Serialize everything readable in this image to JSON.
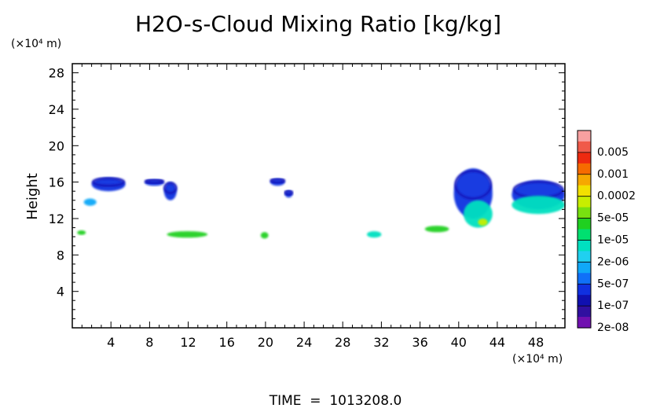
{
  "chart_data": {
    "type": "heatmap",
    "title": "H2O-s-Cloud Mixing Ratio [kg/kg]",
    "ylabel": "Height",
    "y_unit": "(×10⁴ m)",
    "x_unit": "(×10⁴ m)",
    "footer": "TIME  =  1013208.0",
    "xlim": [
      0,
      51
    ],
    "ylim": [
      0,
      29
    ],
    "x_ticks": [
      4,
      8,
      12,
      16,
      20,
      24,
      28,
      32,
      36,
      40,
      44,
      48
    ],
    "y_ticks": [
      4,
      8,
      12,
      16,
      20,
      24,
      28
    ],
    "colorbar": {
      "labels": [
        "0.005",
        "0.001",
        "0.0002",
        "5e-05",
        "1e-05",
        "2e-06",
        "5e-07",
        "1e-07",
        "2e-08"
      ],
      "colors_top_to_bottom": [
        "#f8a0a0",
        "#f05a4a",
        "#ee2a10",
        "#f66b00",
        "#f6a800",
        "#f2e000",
        "#c8ee00",
        "#78e010",
        "#20d020",
        "#00e070",
        "#00e0c0",
        "#20d0f0",
        "#10a8f8",
        "#1070f8",
        "#1030e0",
        "#1010b0",
        "#3010a0",
        "#7010b0"
      ]
    },
    "cloud_regions": [
      {
        "x0": 2.0,
        "x1": 5.5,
        "y0": 15.0,
        "y1": 16.5,
        "level": "5e-07"
      },
      {
        "x0": 1.2,
        "x1": 2.5,
        "y0": 13.4,
        "y1": 14.2,
        "level": "2e-06"
      },
      {
        "x0": 0.5,
        "x1": 1.4,
        "y0": 10.2,
        "y1": 10.7,
        "level": "5e-05"
      },
      {
        "x0": 7.5,
        "x1": 9.5,
        "y0": 15.6,
        "y1": 16.3,
        "level": "5e-07"
      },
      {
        "x0": 9.5,
        "x1": 10.8,
        "y0": 14.0,
        "y1": 16.0,
        "level": "5e-07"
      },
      {
        "x0": 9.8,
        "x1": 14.0,
        "y0": 9.9,
        "y1": 10.6,
        "level": "5e-05"
      },
      {
        "x0": 20.5,
        "x1": 22.0,
        "y0": 15.6,
        "y1": 16.4,
        "level": "5e-07"
      },
      {
        "x0": 22.0,
        "x1": 22.8,
        "y0": 14.3,
        "y1": 15.1,
        "level": "5e-07"
      },
      {
        "x0": 19.5,
        "x1": 20.3,
        "y0": 9.8,
        "y1": 10.5,
        "level": "5e-05"
      },
      {
        "x0": 30.5,
        "x1": 32.0,
        "y0": 9.9,
        "y1": 10.6,
        "level": "1e-05"
      },
      {
        "x0": 36.5,
        "x1": 39.0,
        "y0": 10.5,
        "y1": 11.2,
        "level": "5e-05"
      },
      {
        "x0": 39.5,
        "x1": 43.5,
        "y0": 12.0,
        "y1": 17.5,
        "level": "5e-07"
      },
      {
        "x0": 40.5,
        "x1": 43.5,
        "y0": 11.0,
        "y1": 14.0,
        "level": "1e-05"
      },
      {
        "x0": 42.0,
        "x1": 43.0,
        "y0": 11.2,
        "y1": 12.0,
        "level": "0.0002"
      },
      {
        "x0": 45.5,
        "x1": 51.0,
        "y0": 13.0,
        "y1": 16.2,
        "level": "5e-07"
      },
      {
        "x0": 45.5,
        "x1": 51.0,
        "y0": 12.5,
        "y1": 14.5,
        "level": "1e-05"
      }
    ]
  }
}
